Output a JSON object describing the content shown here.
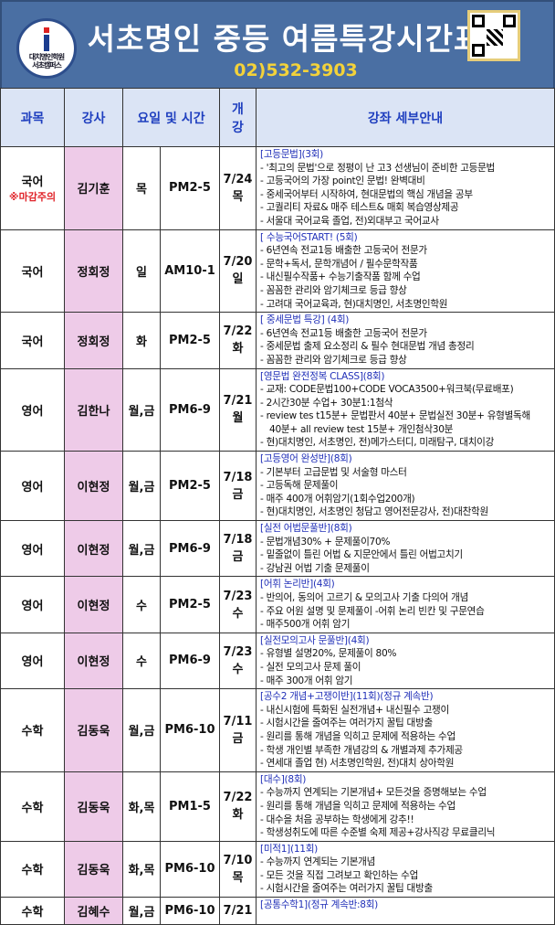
{
  "header": {
    "logo_text": [
      "대치명인학원",
      "서초캠퍼스"
    ],
    "title": "서초명인 중등 여름특강시간표",
    "phone": "02)532-3903",
    "colors": {
      "banner": "#4a6fa3",
      "phone": "#f3d23a",
      "teacher_col": "#eecbe8",
      "course_title": "#2130b8",
      "warning": "#e0242a"
    }
  },
  "columns": [
    "과목",
    "강사",
    "요일 및 시간",
    "개강",
    "강좌 세부안내"
  ],
  "columns_gaegang": [
    "개",
    "강"
  ],
  "rows": [
    {
      "subject": "국어",
      "note": "※마감주의",
      "teacher": "김기훈",
      "day": "목",
      "time": "PM2-5",
      "start_date": "7/24",
      "start_day": "목",
      "course": "[고등문법](3회)",
      "lines": [
        "- '최고의 문법'으로 정평이 난 고3 선생님이 준비한 고등문법",
        "- 고등국어의 가장 point인 문법! 완벽대비",
        "- 중세국어부터 시작하여, 현대문법의 핵심 개념을 공부",
        "- 고퀄리티 자료& 매주 테스트& 매회 복습영상제공",
        "- 서울대 국어교육 졸업, 전)외대부고 국어교사"
      ]
    },
    {
      "subject": "국어",
      "teacher": "정회정",
      "day": "일",
      "time": "AM10-1",
      "start_date": "7/20",
      "start_day": "일",
      "course": "[ 수능국어START! (5회)",
      "lines": [
        "- 6년연속 전교1등 배출한 고등국어 전문가",
        "- 문학+독서, 문학개념어 / 필수문학작품",
        "- 내신필수작품+ 수능기출작품 함께 수업",
        "- 꼼꼼한 관리와 암기체크로 등급 향상",
        "- 고려대 국어교육과, 현)대치명인, 서초명인학원"
      ]
    },
    {
      "subject": "국어",
      "teacher": "정회정",
      "day": "화",
      "time": "PM2-5",
      "start_date": "7/22",
      "start_day": "화",
      "course": "[ 중세문법 특강] (4회)",
      "lines": [
        "- 6년연속 전교1등 배출한 고등국어 전문가",
        "- 중세문법 출제 요소정리 & 필수 현대문법 개념 총정리",
        "- 꼼꼼한 관리와 암기체크로 등급 향상"
      ]
    },
    {
      "subject": "영어",
      "teacher": "김한나",
      "day": "월,금",
      "time": "PM6-9",
      "start_date": "7/21",
      "start_day": "월",
      "course": "[영문법 완전정복 CLASS](8회)",
      "lines": [
        "- 교재: CODE문법100+CODE VOCA3500+워크북(무료배포)",
        "- 2시간30분 수업+ 30분1:1첨삭",
        "- review tes t15분+ 문법판서 40분+ 문법실전 30분+ 유형별독해",
        "  40분+ all review test 15분+ 개인첨삭30분",
        "- 현)대치명인, 서초명인, 전)메가스터디, 미래탐구, 대치이강"
      ]
    },
    {
      "subject": "영어",
      "teacher": "이현정",
      "day": "월,금",
      "time": "PM2-5",
      "start_date": "7/18",
      "start_day": "금",
      "course": "[고등영어 완성반](8회)",
      "lines": [
        "- 기본부터 고급문법 및 서술형 마스터",
        "- 고등독해 문제풀이",
        "- 매주 400개 어휘암기(1회수업200개)",
        "- 현)대치명인, 서초명인 청담고 영어전문강사, 전)대찬학원"
      ]
    },
    {
      "subject": "영어",
      "teacher": "이현정",
      "day": "월,금",
      "time": "PM6-9",
      "start_date": "7/18",
      "start_day": "금",
      "course": "[실전 어법문풀반](8회)",
      "lines": [
        "- 문법개념30% + 문제풀이70%",
        "- 밑줄없이 틀린 어법 & 지문안에서 틀린 어법고치기",
        "- 강남권 어법 기출 문제풀이"
      ]
    },
    {
      "subject": "영어",
      "teacher": "이현정",
      "day": "수",
      "time": "PM2-5",
      "start_date": "7/23",
      "start_day": "수",
      "course": "[어휘 논리반](4회)",
      "lines": [
        "- 반의어, 동의어 고르기 & 모의고사 기출 다의어 개념",
        "- 주요 어원 설명 및 문제풀이  -어휘 논리 빈칸 및 구문연습",
        "- 매주500개 어휘 암기"
      ]
    },
    {
      "subject": "영어",
      "teacher": "이현정",
      "day": "수",
      "time": "PM6-9",
      "start_date": "7/23",
      "start_day": "수",
      "course": "[실전모의고사 문풀반](4회)",
      "lines": [
        "- 유형별 설명20%, 문제풀이 80%",
        "- 실전 모의고사 문제 풀이",
        "- 매주 300개 어휘 암기"
      ]
    },
    {
      "subject": "수학",
      "teacher": "김동욱",
      "day": "월,금",
      "time": "PM6-10",
      "start_date": "7/11",
      "start_day": "금",
      "course": "[공수2 개념+고쟁이반](11회)(정규 계속반)",
      "lines": [
        "- 내신시험에 특화된 실전개념+ 내신필수 고쟁이",
        "- 시험시간을 줄여주는 여러가지 꿀팁 대방출",
        "- 원리를 통해 개념을 익히고 문제에 적용하는 수업",
        "- 학생 개인별 부족한 개념강의 & 개별과제 추가제공",
        "- 연세대 졸업  현) 서초명인학원, 전)대치 상아학원"
      ]
    },
    {
      "subject": "수학",
      "teacher": "김동욱",
      "day": "화,목",
      "time": "PM1-5",
      "start_date": "7/22",
      "start_day": "화",
      "course": "[대수](8회)",
      "lines": [
        "- 수능까지 연계되는 기본개념+ 모든것을 증명해보는 수업",
        "- 원리를 통해 개념을 익히고 문제에 적용하는 수업",
        "- 대수을 처음 공부하는 학생에게 강추!!",
        "- 학생성취도에 따른 수준별 숙제 제공+강사직강 무료클리닉"
      ]
    },
    {
      "subject": "수학",
      "teacher": "김동욱",
      "day": "화,목",
      "time": "PM6-10",
      "start_date": "7/10",
      "start_day": "목",
      "course": "[미적1](11회)",
      "lines": [
        "- 수능까지 연계되는 기본개념",
        "- 모든 것을 직접 그려보고 확인하는 수업",
        "- 시험시간을 줄여주는 여러가지 꿀팁 대방출"
      ]
    },
    {
      "subject": "수학",
      "teacher": "김혜수",
      "day": "월,금",
      "time": "PM6-10",
      "start_date": "7/21",
      "start_day": "",
      "course": "[공통수학1](정규 계속반:8회)",
      "lines": []
    }
  ]
}
